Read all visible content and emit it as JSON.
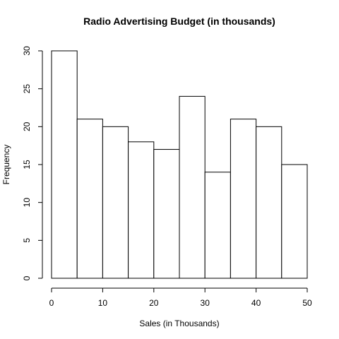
{
  "chart_data": {
    "type": "bar",
    "title": "Radio Advertising Budget (in thousands)",
    "xlabel": "Sales (in Thousands)",
    "ylabel": "Frequency",
    "bins": [
      [
        0,
        5
      ],
      [
        5,
        10
      ],
      [
        10,
        15
      ],
      [
        15,
        20
      ],
      [
        20,
        25
      ],
      [
        25,
        30
      ],
      [
        30,
        35
      ],
      [
        35,
        40
      ],
      [
        40,
        45
      ],
      [
        45,
        50
      ]
    ],
    "values": [
      30,
      21,
      20,
      18,
      17,
      24,
      14,
      21,
      20,
      15
    ],
    "xlim": [
      0,
      50
    ],
    "ylim": [
      0,
      30
    ],
    "xticks": [
      0,
      10,
      20,
      30,
      40,
      50
    ],
    "yticks": [
      0,
      5,
      10,
      15,
      20,
      25,
      30
    ],
    "grid": false,
    "bar_fill": "#ffffff",
    "bar_stroke": "#000000"
  }
}
